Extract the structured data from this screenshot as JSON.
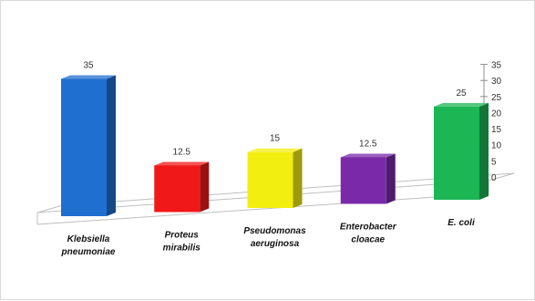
{
  "chart_data": {
    "type": "bar",
    "categories": [
      [
        "Klebsiella",
        "pneumoniae"
      ],
      [
        "Proteus",
        "mirabilis"
      ],
      [
        "Pseudomonas",
        "aeruginosa"
      ],
      [
        "Enterobacter",
        "cloacae"
      ],
      [
        "E. coli"
      ]
    ],
    "values": [
      35,
      12.5,
      15,
      12.5,
      25
    ],
    "value_labels": [
      "35",
      "12.5",
      "15",
      "12.5",
      "25"
    ],
    "colors": [
      "#1f6fd0",
      "#f01818",
      "#f2ee10",
      "#7a2aa8",
      "#1cb654"
    ],
    "yticks": [
      "0",
      "5",
      "10",
      "15",
      "20",
      "25",
      "30",
      "35"
    ],
    "ylim": [
      0,
      35
    ],
    "title": "",
    "xlabel": "",
    "ylabel": "",
    "legend": "none",
    "grid": false,
    "style": "3d-column"
  }
}
